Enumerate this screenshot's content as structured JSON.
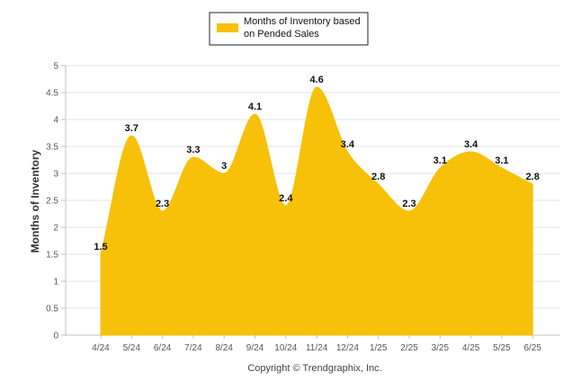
{
  "chart_data": {
    "type": "area",
    "categories": [
      "4/24",
      "5/24",
      "6/24",
      "7/24",
      "8/24",
      "9/24",
      "10/24",
      "11/24",
      "12/24",
      "1/25",
      "2/25",
      "3/25",
      "4/25",
      "5/25",
      "6/25"
    ],
    "series": [
      {
        "name": "Months of Inventory based on Pended Sales",
        "values": [
          1.5,
          3.7,
          2.3,
          3.3,
          3.0,
          4.1,
          2.4,
          4.6,
          3.4,
          2.8,
          2.3,
          3.1,
          3.4,
          3.1,
          2.8
        ],
        "labels": [
          "1.5",
          "3.7",
          "2.3",
          "3.3",
          "3",
          "4.1",
          "2.4",
          "4.6",
          "3.4",
          "2.8",
          "2.3",
          "3.1",
          "3.4",
          "3.1",
          "2.8"
        ],
        "color": "#F7C109"
      }
    ],
    "legend_lines": [
      "Months of Inventory based",
      "on Pended Sales"
    ],
    "ylabel": "Months of Inventory",
    "xlabel": "",
    "ylim": [
      0,
      5
    ],
    "yticks": [
      "0",
      "0.5",
      "1",
      "1.5",
      "2",
      "2.5",
      "3",
      "3.5",
      "4",
      "4.5",
      "5"
    ],
    "grid": true,
    "legend_position": "top-center",
    "footer": "Copyright © Trendgraphix, Inc."
  },
  "colors": {
    "grid": "#E6E6E6",
    "axis": "#C0C0C0"
  }
}
